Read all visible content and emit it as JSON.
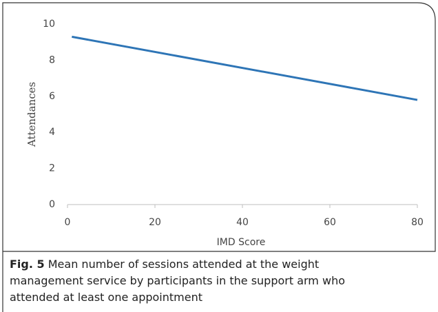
{
  "chart_data": {
    "type": "line",
    "x_label": "IMD Score",
    "y_label": "Attendances",
    "x": [
      1,
      80
    ],
    "series": [
      {
        "name": "Attendances",
        "color": "#2e75b6",
        "values": [
          9.3,
          5.8
        ]
      }
    ],
    "xlim": [
      0,
      80
    ],
    "xticks": [
      0,
      20,
      40,
      60,
      80
    ],
    "ylim": [
      0,
      10
    ],
    "yticks": [
      0,
      2,
      4,
      6,
      8,
      10
    ],
    "grid": false,
    "caption_label": "Fig. 5",
    "caption": "Mean number of sessions attended at the weight management service by participants in the support arm who attended at least one appointment"
  }
}
